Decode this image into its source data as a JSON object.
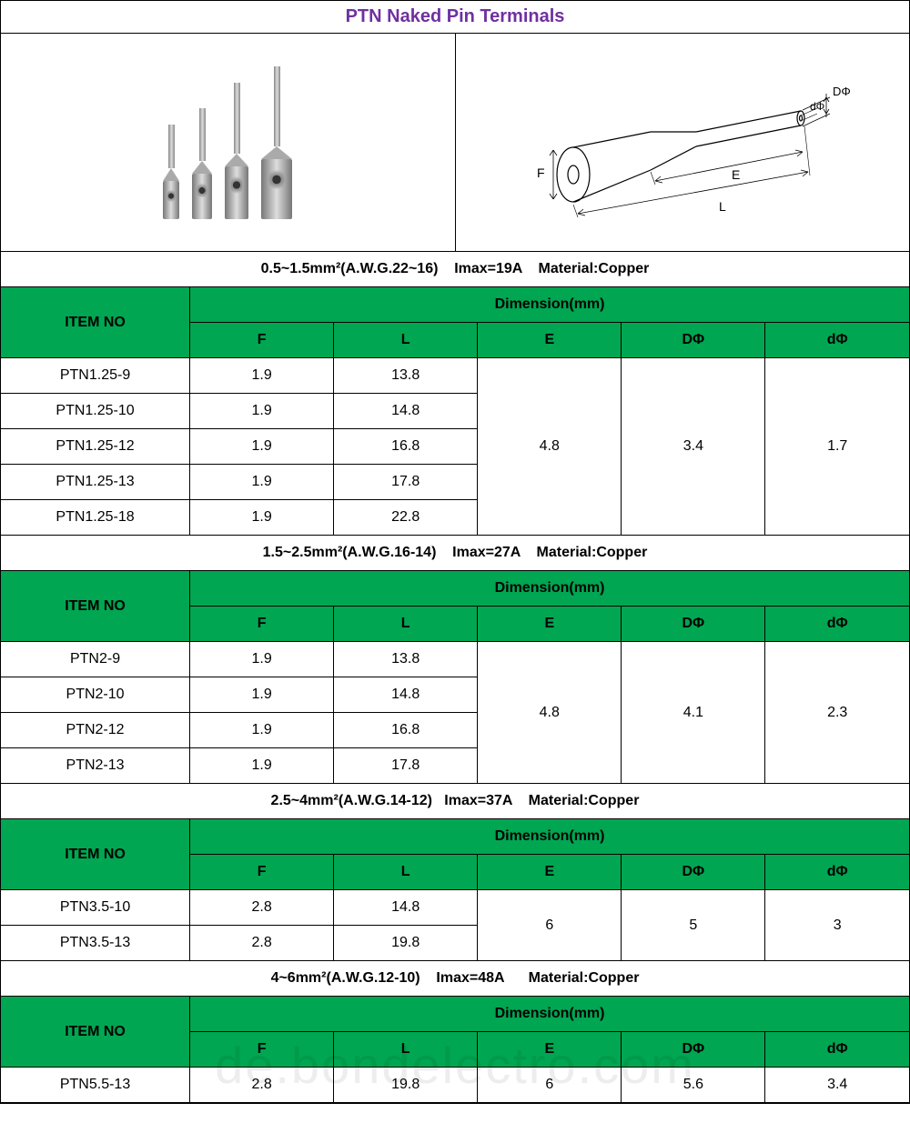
{
  "title": "PTN Naked Pin Terminals",
  "title_color": "#7030a0",
  "header_bg": "#00a651",
  "diagram_labels": {
    "D": "DΦ",
    "d": "dΦ",
    "E": "E",
    "L": "L",
    "F": "F"
  },
  "columns": {
    "item": "ITEM NO",
    "dim": "Dimension(mm)",
    "F": "F",
    "L": "L",
    "E": "E",
    "D": "DΦ",
    "d": "dΦ"
  },
  "sections": [
    {
      "spec": "0.5~1.5mm²(A.W.G.22~16)    Imax=19A    Material:Copper",
      "common": {
        "E": "4.8",
        "D": "3.4",
        "d": "1.7"
      },
      "rows": [
        {
          "item": "PTN1.25-9",
          "F": "1.9",
          "L": "13.8"
        },
        {
          "item": "PTN1.25-10",
          "F": "1.9",
          "L": "14.8"
        },
        {
          "item": "PTN1.25-12",
          "F": "1.9",
          "L": "16.8"
        },
        {
          "item": "PTN1.25-13",
          "F": "1.9",
          "L": "17.8"
        },
        {
          "item": "PTN1.25-18",
          "F": "1.9",
          "L": "22.8"
        }
      ]
    },
    {
      "spec": "1.5~2.5mm²(A.W.G.16-14)    Imax=27A    Material:Copper",
      "common": {
        "E": "4.8",
        "D": "4.1",
        "d": "2.3"
      },
      "rows": [
        {
          "item": "PTN2-9",
          "F": "1.9",
          "L": "13.8"
        },
        {
          "item": "PTN2-10",
          "F": "1.9",
          "L": "14.8"
        },
        {
          "item": "PTN2-12",
          "F": "1.9",
          "L": "16.8"
        },
        {
          "item": "PTN2-13",
          "F": "1.9",
          "L": "17.8"
        }
      ]
    },
    {
      "spec": "2.5~4mm²(A.W.G.14-12)   Imax=37A    Material:Copper",
      "common": {
        "E": "6",
        "D": "5",
        "d": "3"
      },
      "rows": [
        {
          "item": "PTN3.5-10",
          "F": "2.8",
          "L": "14.8"
        },
        {
          "item": "PTN3.5-13",
          "F": "2.8",
          "L": "19.8"
        }
      ]
    },
    {
      "spec": "4~6mm²(A.W.G.12-10)    Imax=48A      Material:Copper",
      "common": {
        "E": "6",
        "D": "5.6",
        "d": "3.4"
      },
      "rows": [
        {
          "item": "PTN5.5-13",
          "F": "2.8",
          "L": "19.8"
        }
      ]
    }
  ],
  "watermark": "de.bondelectro.com",
  "photo_pins": [
    {
      "shaft_h": 48,
      "barrel_w": 18,
      "barrel_h": 42
    },
    {
      "shaft_h": 58,
      "barrel_w": 22,
      "barrel_h": 50
    },
    {
      "shaft_h": 78,
      "barrel_w": 26,
      "barrel_h": 58
    },
    {
      "shaft_h": 88,
      "barrel_w": 34,
      "barrel_h": 66
    }
  ]
}
